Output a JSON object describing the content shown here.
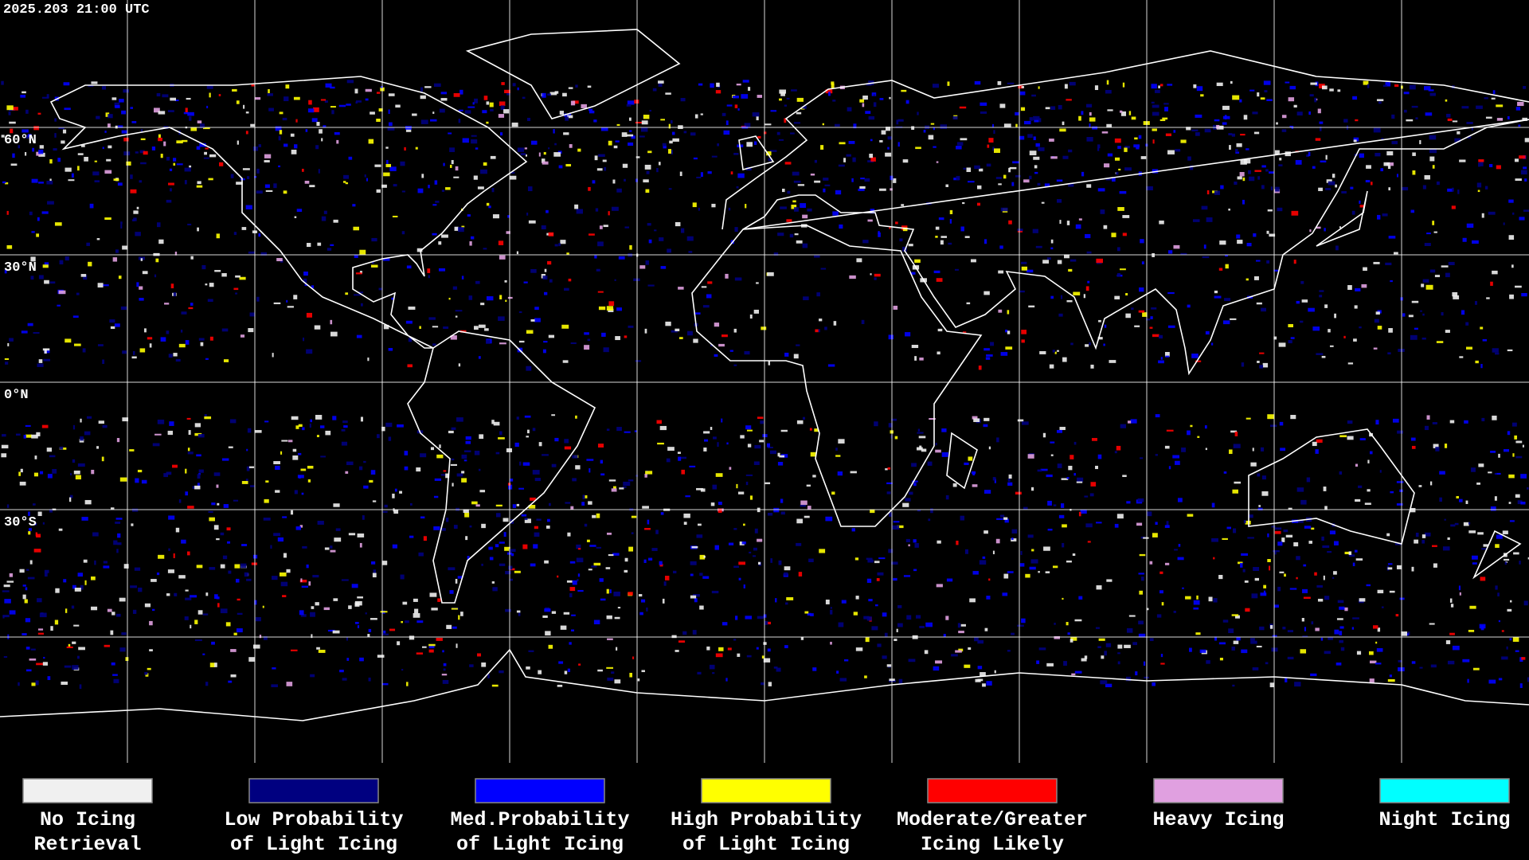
{
  "header": {
    "timestamp": "2025.203 21:00 UTC"
  },
  "map": {
    "lat_labels": [
      "60°N",
      "30°N",
      "0°N",
      "30°S"
    ]
  },
  "legend": {
    "items": [
      {
        "color": "#f0f0f0",
        "lines": [
          "No Icing",
          "Retrieval"
        ]
      },
      {
        "color": "#000080",
        "lines": [
          "Low Probability",
          "of Light Icing"
        ]
      },
      {
        "color": "#0000ff",
        "lines": [
          "Med.Probability",
          "of Light Icing"
        ]
      },
      {
        "color": "#ffff00",
        "lines": [
          "High Probability",
          "of Light Icing"
        ]
      },
      {
        "color": "#ff0000",
        "lines": [
          "Moderate/Greater",
          "Icing Likely"
        ]
      },
      {
        "color": "#e0a0e0",
        "lines": [
          "Heavy Icing"
        ]
      },
      {
        "color": "#00ffff",
        "lines": [
          "Night Icing"
        ]
      }
    ]
  }
}
